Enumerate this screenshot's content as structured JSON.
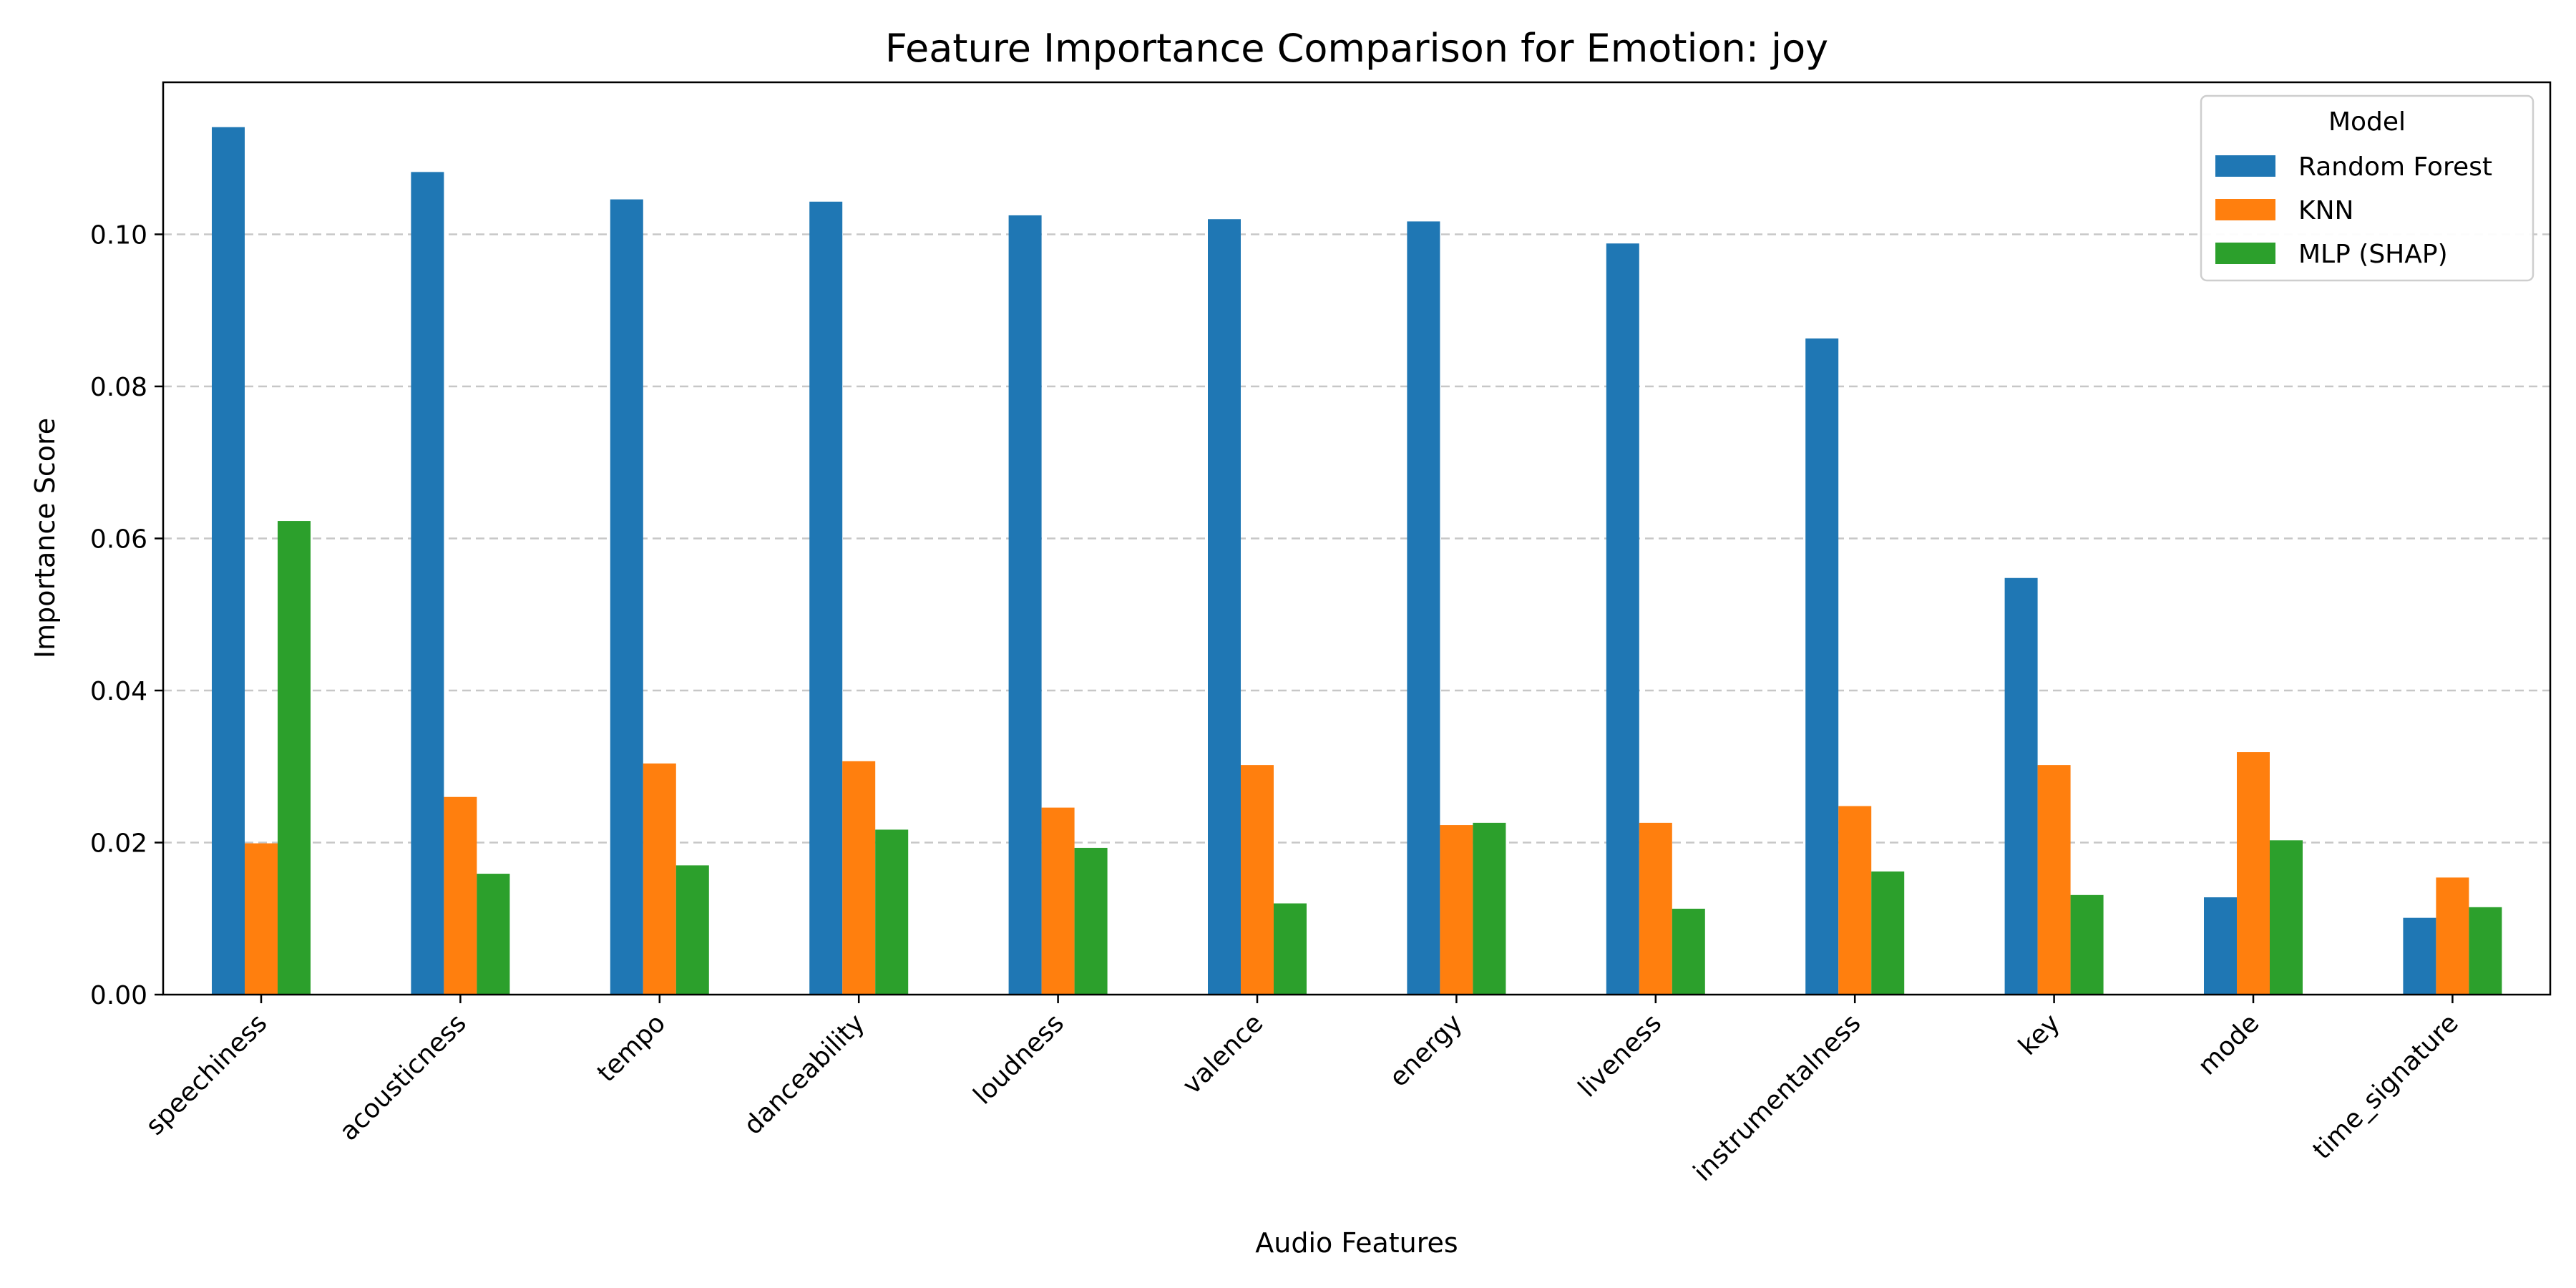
{
  "chart_data": {
    "type": "bar",
    "title": "Feature Importance Comparison for Emotion: joy",
    "xlabel": "Audio Features",
    "ylabel": "Importance Score",
    "categories": [
      "speechiness",
      "acousticness",
      "tempo",
      "danceability",
      "loudness",
      "valence",
      "energy",
      "liveness",
      "instrumentalness",
      "key",
      "mode",
      "time_signature"
    ],
    "series": [
      {
        "name": "Random Forest",
        "color": "#1f77b4",
        "values": [
          0.1141,
          0.1082,
          0.1046,
          0.1043,
          0.1025,
          0.102,
          0.1017,
          0.0988,
          0.0863,
          0.0548,
          0.0128,
          0.0101
        ]
      },
      {
        "name": "KNN",
        "color": "#ff7f0e",
        "values": [
          0.0199,
          0.026,
          0.0304,
          0.0307,
          0.0246,
          0.0302,
          0.0223,
          0.0226,
          0.0248,
          0.0302,
          0.0319,
          0.0154
        ]
      },
      {
        "name": "MLP (SHAP)",
        "color": "#2ca02c",
        "values": [
          0.0623,
          0.0159,
          0.017,
          0.0217,
          0.0193,
          0.012,
          0.0226,
          0.0113,
          0.0162,
          0.0131,
          0.0203,
          0.0115
        ]
      }
    ],
    "ylim": [
      0,
      0.12
    ],
    "yticks": [
      0.0,
      0.02,
      0.04,
      0.06,
      0.08,
      0.1
    ],
    "ytick_labels": [
      "0.00",
      "0.02",
      "0.04",
      "0.06",
      "0.08",
      "0.10"
    ],
    "grid": "y-dashed",
    "legend": {
      "title": "Model",
      "placement": "upper right"
    }
  }
}
